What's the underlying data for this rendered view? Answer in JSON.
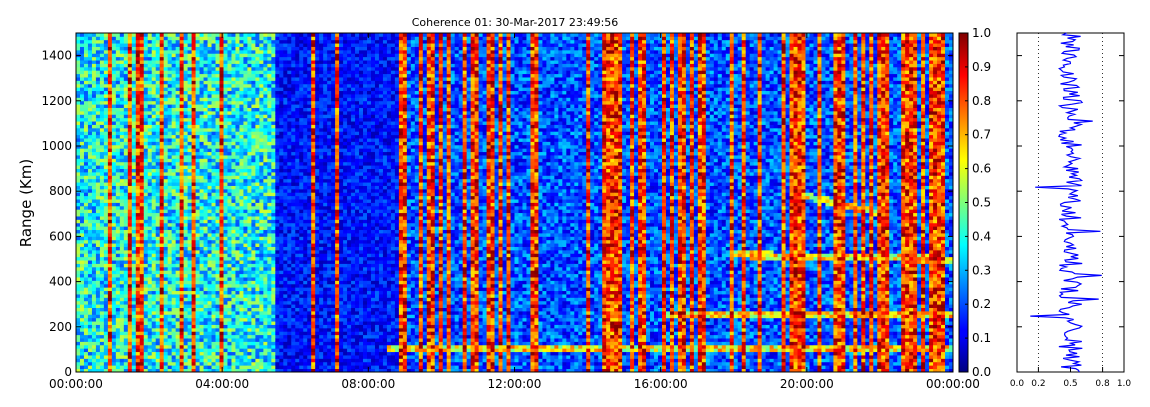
{
  "chart_data": [
    {
      "type": "heatmap",
      "title": "Coherence 01: 30-Mar-2017 23:49:56",
      "ylabel": "Range (Km)",
      "xlabel": "",
      "x_tick_labels": [
        "00:00:00",
        "04:00:00",
        "08:00:00",
        "12:00:00",
        "16:00:00",
        "20:00:00",
        "00:00:00"
      ],
      "x_range_hours": [
        0,
        24
      ],
      "y_ticks": [
        0,
        200,
        400,
        600,
        800,
        1000,
        1200,
        1400
      ],
      "y_range": [
        0,
        1500
      ],
      "colorbar": {
        "ticks": [
          "0.0",
          "0.1",
          "0.2",
          "0.3",
          "0.4",
          "0.5",
          "0.6",
          "0.7",
          "0.8",
          "0.9",
          "1.0"
        ],
        "range": [
          0,
          1
        ],
        "colormap": "jet"
      },
      "features": {
        "low_coherence_band_hours": [
          5.5,
          9.0
        ],
        "echo_traces_km": [
          {
            "hours": [
              8.5,
              24
            ],
            "range": [
              100,
              100
            ]
          },
          {
            "hours": [
              16,
              24
            ],
            "range": [
              250,
              260
            ]
          },
          {
            "hours": [
              18,
              24
            ],
            "range": [
              520,
              500
            ]
          },
          {
            "hours": [
              20,
              22
            ],
            "range": [
              780,
              700
            ]
          }
        ]
      }
    },
    {
      "type": "line",
      "x_tick_labels": [
        "0.0",
        "0.2",
        "0.5",
        "0.8",
        "1.0"
      ],
      "xlim": [
        0,
        1
      ],
      "y_range": [
        0,
        1500
      ],
      "grid_x": [
        0.2,
        0.8
      ],
      "series_color": "#0000ff",
      "mean_value": 0.5
    }
  ]
}
